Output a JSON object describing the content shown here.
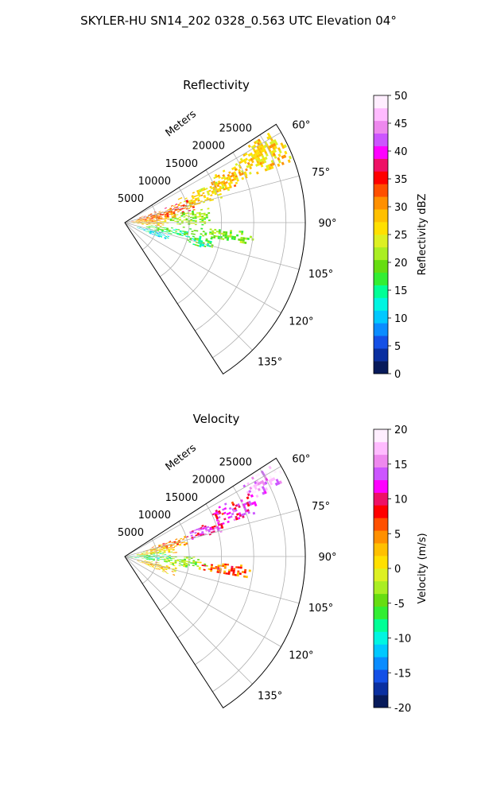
{
  "figure": {
    "suptitle": "SKYLER-HU  SN14_202  0328_0.563 UTC Elevation 04°"
  },
  "chart_data": [
    {
      "type": "heatmap",
      "projection": "polar-sector",
      "title": "Reflectivity",
      "range_label": "Meters",
      "range_ticks": [
        5000,
        10000,
        15000,
        20000,
        25000
      ],
      "range_tick_labels": [
        "5000",
        "10000",
        "15000",
        "20000",
        "25000"
      ],
      "range_max": 28000,
      "azimuth_ticks": [
        60,
        75,
        90,
        105,
        120,
        135
      ],
      "azimuth_tick_labels": [
        "60°",
        "75°",
        "90°",
        "105°",
        "120°",
        "135°"
      ],
      "azimuth_range": [
        57,
        147
      ],
      "grid": true,
      "colorbar": {
        "label": "Reflectivity dBZ",
        "min": 0,
        "max": 50,
        "ticks": [
          0,
          5,
          10,
          15,
          20,
          25,
          30,
          35,
          40,
          45,
          50
        ],
        "tick_labels": [
          "0",
          "5",
          "10",
          "15",
          "20",
          "25",
          "30",
          "35",
          "40",
          "45",
          "50"
        ],
        "colors": [
          "#071a5a",
          "#0a2fa0",
          "#1450e6",
          "#0a8cff",
          "#00c8ff",
          "#00f5e1",
          "#00ff96",
          "#33ee33",
          "#66dd11",
          "#aaee22",
          "#ddf022",
          "#ffe000",
          "#ffc000",
          "#ff9000",
          "#ff5000",
          "#ff0000",
          "#ee1166",
          "#ff00ff",
          "#cc55ff",
          "#ee88ee",
          "#ffbbff",
          "#ffeeff"
        ]
      },
      "echoes": [
        {
          "az": [
            58,
            70
          ],
          "r": [
            19000,
            27500
          ],
          "value": 27
        },
        {
          "az": [
            62,
            72
          ],
          "r": [
            14000,
            20000
          ],
          "value": 28
        },
        {
          "az": [
            66,
            76
          ],
          "r": [
            9000,
            17000
          ],
          "value": 26
        },
        {
          "az": [
            70,
            82
          ],
          "r": [
            2000,
            11000
          ],
          "value": 33
        },
        {
          "az": [
            76,
            88
          ],
          "r": [
            1000,
            8000
          ],
          "value": 31
        },
        {
          "az": [
            80,
            92
          ],
          "r": [
            7000,
            13000
          ],
          "value": 21
        },
        {
          "az": [
            84,
            96
          ],
          "r": [
            500,
            6500
          ],
          "value": 28
        },
        {
          "az": [
            94,
            100
          ],
          "r": [
            9000,
            20000
          ],
          "value": 20
        },
        {
          "az": [
            96,
            104
          ],
          "r": [
            3000,
            10000
          ],
          "value": 17
        },
        {
          "az": [
            104,
            114
          ],
          "r": [
            2000,
            7000
          ],
          "value": 12
        },
        {
          "az": [
            100,
            108
          ],
          "r": [
            10000,
            14000
          ],
          "value": 17
        }
      ]
    },
    {
      "type": "heatmap",
      "projection": "polar-sector",
      "title": "Velocity",
      "range_label": "Meters",
      "range_ticks": [
        5000,
        10000,
        15000,
        20000,
        25000
      ],
      "range_tick_labels": [
        "5000",
        "10000",
        "15000",
        "20000",
        "25000"
      ],
      "range_max": 28000,
      "azimuth_ticks": [
        60,
        75,
        90,
        105,
        120,
        135
      ],
      "azimuth_tick_labels": [
        "60°",
        "75°",
        "90°",
        "105°",
        "120°",
        "135°"
      ],
      "azimuth_range": [
        57,
        147
      ],
      "grid": true,
      "colorbar": {
        "label": "Velocity (m/s)",
        "min": -20,
        "max": 20,
        "ticks": [
          -20,
          -15,
          -10,
          -5,
          0,
          5,
          10,
          15,
          20
        ],
        "tick_labels": [
          "-20",
          "-15",
          "-10",
          "-5",
          "0",
          "5",
          "10",
          "15",
          "20"
        ],
        "colors": [
          "#071a5a",
          "#0a2fa0",
          "#1450e6",
          "#0a8cff",
          "#00c8ff",
          "#00f5e1",
          "#00ff96",
          "#33ee33",
          "#66dd11",
          "#aaee22",
          "#ddf022",
          "#ffe000",
          "#ffc000",
          "#ff9000",
          "#ff5000",
          "#ff0000",
          "#ee1166",
          "#ff00ff",
          "#cc55ff",
          "#ee88ee",
          "#ffbbff",
          "#ffeeff"
        ]
      },
      "echoes": [
        {
          "az": [
            58,
            66
          ],
          "r": [
            21000,
            27500
          ],
          "value": 16
        },
        {
          "az": [
            62,
            72
          ],
          "r": [
            15000,
            22000
          ],
          "value": 11
        },
        {
          "az": [
            68,
            76
          ],
          "r": [
            10000,
            16000
          ],
          "value": 12
        },
        {
          "az": [
            70,
            80
          ],
          "r": [
            3000,
            10000
          ],
          "value": 4
        },
        {
          "az": [
            76,
            86
          ],
          "r": [
            1500,
            8000
          ],
          "value": 1
        },
        {
          "az": [
            84,
            98
          ],
          "r": [
            500,
            7000
          ],
          "value": -6
        },
        {
          "az": [
            90,
            100
          ],
          "r": [
            6000,
            13000
          ],
          "value": -3
        },
        {
          "az": [
            94,
            100
          ],
          "r": [
            12000,
            20000
          ],
          "value": 6
        },
        {
          "az": [
            100,
            112
          ],
          "r": [
            2000,
            8000
          ],
          "value": 2
        }
      ]
    }
  ]
}
